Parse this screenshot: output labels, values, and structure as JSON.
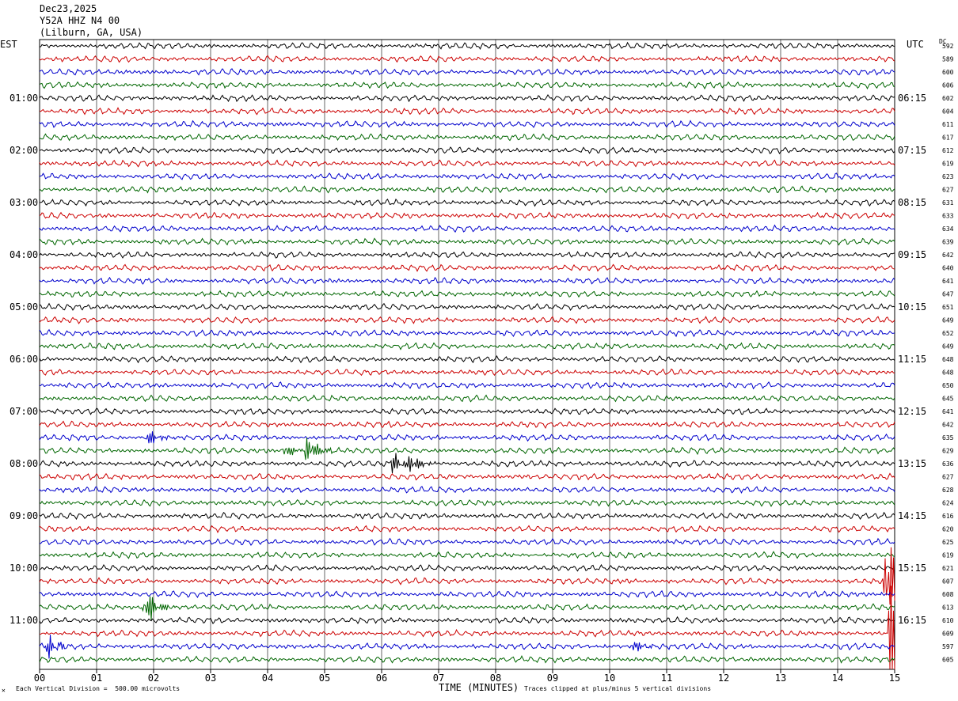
{
  "header": {
    "date": "Dec23,2025",
    "station": "Y52A HHZ N4 00",
    "location": "(Lilburn, GA, USA)"
  },
  "left_zone": "EST",
  "right_zone": "UTC",
  "dc_label": "DC",
  "footer": {
    "scale_note": "Each Vertical Division =  500.00 microvolts",
    "xlabel": "TIME (MINUTES)",
    "clip_note": "Traces clipped at plus/minus 5 vertical divisions"
  },
  "colors": {
    "trace_cycle": [
      "#000000",
      "#cc0000",
      "#0000cc",
      "#006600"
    ],
    "grid": "#000000"
  },
  "chart_data": {
    "type": "line",
    "title": "Y52A HHZ N4 00",
    "xlabel": "TIME (MINUTES)",
    "xlim": [
      0,
      15
    ],
    "x_ticks": [
      "00",
      "01",
      "02",
      "03",
      "04",
      "05",
      "06",
      "07",
      "08",
      "09",
      "10",
      "11",
      "12",
      "13",
      "14",
      "15"
    ],
    "left_time_labels": [
      "01:00",
      "02:00",
      "03:00",
      "04:00",
      "05:00",
      "06:00",
      "07:00",
      "08:00",
      "09:00",
      "10:00",
      "11:00"
    ],
    "right_time_labels": [
      "06:15",
      "07:15",
      "08:15",
      "09:15",
      "10:15",
      "11:15",
      "12:15",
      "13:15",
      "14:15",
      "15:15",
      "16:15"
    ],
    "trace_count": 48,
    "dc_offsets": [
      592,
      589,
      600,
      606,
      602,
      604,
      611,
      617,
      612,
      619,
      623,
      627,
      631,
      633,
      634,
      639,
      642,
      640,
      641,
      647,
      651,
      649,
      652,
      649,
      648,
      648,
      650,
      645,
      641,
      642,
      635,
      629,
      636,
      627,
      628,
      624,
      616,
      620,
      625,
      619,
      621,
      607,
      608,
      613,
      610,
      609,
      597,
      605
    ],
    "events": [
      {
        "trace": 30,
        "minute": 1.9,
        "amplitude": 1.2
      },
      {
        "trace": 31,
        "minute": 4.3,
        "amplitude": 1.1
      },
      {
        "trace": 31,
        "minute": 4.7,
        "amplitude": 2.5
      },
      {
        "trace": 32,
        "minute": 6.2,
        "amplitude": 1.5
      },
      {
        "trace": 32,
        "minute": 6.5,
        "amplitude": 1.3
      },
      {
        "trace": 43,
        "minute": 1.85,
        "amplitude": 3.0
      },
      {
        "trace": 46,
        "minute": 0.15,
        "amplitude": 1.6
      },
      {
        "trace": 46,
        "minute": 10.4,
        "amplitude": 1.0
      },
      {
        "trace": 41,
        "minute": 14.85,
        "amplitude": 9.0
      },
      {
        "trace": 45,
        "minute": 14.9,
        "amplitude": 8.0
      }
    ]
  }
}
